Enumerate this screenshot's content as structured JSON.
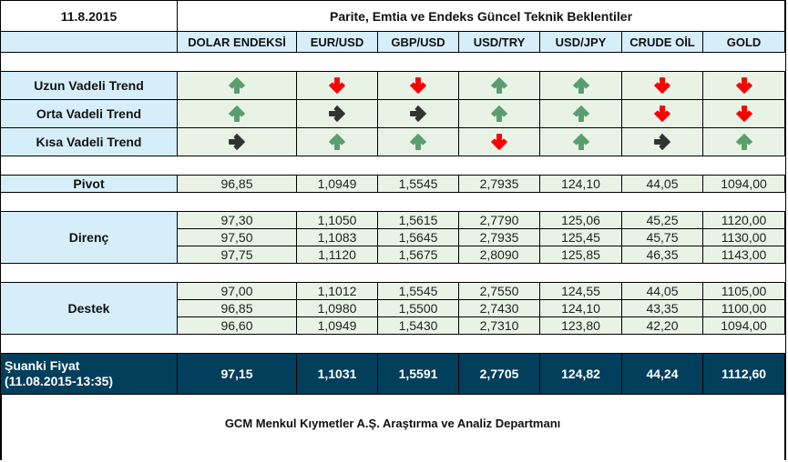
{
  "header": {
    "date": "11.8.2015",
    "title": "Parite, Emtia ve Endeks Güncel Teknik Beklentiler"
  },
  "columns": [
    "DOLAR ENDEKSİ",
    "EUR/USD",
    "GBP/USD",
    "USD/TRY",
    "USD/JPY",
    "CRUDE OİL",
    "GOLD"
  ],
  "colors": {
    "up": "#5a9e6f",
    "down": "#ff0000",
    "neutral": "#333333",
    "label_bg": "#d6eef9",
    "cell_bg": "#e8f3e6",
    "current_bg": "#023f5c"
  },
  "trends": [
    {
      "label": "Uzun Vadeli Trend",
      "values": [
        "up-arrow-icon",
        "down-arrow-icon",
        "down-arrow-icon",
        "up-arrow-icon",
        "up-arrow-icon",
        "down-arrow-icon",
        "down-arrow-icon"
      ]
    },
    {
      "label": "Orta Vadeli Trend",
      "values": [
        "up-arrow-icon",
        "right-arrow-icon",
        "right-arrow-icon",
        "up-arrow-icon",
        "up-arrow-icon",
        "down-arrow-icon",
        "down-arrow-icon"
      ]
    },
    {
      "label": "Kısa Vadeli Trend",
      "values": [
        "right-arrow-icon",
        "up-arrow-icon",
        "up-arrow-icon",
        "down-arrow-icon",
        "up-arrow-icon",
        "right-arrow-icon",
        "up-arrow-icon"
      ]
    }
  ],
  "pivot": {
    "label": "Pivot",
    "values": [
      "96,85",
      "1,0949",
      "1,5545",
      "2,7935",
      "124,10",
      "44,05",
      "1094,00"
    ]
  },
  "direnc": {
    "label": "Direnç",
    "rows": [
      [
        "97,30",
        "1,1050",
        "1,5615",
        "2,7790",
        "125,06",
        "45,25",
        "1120,00"
      ],
      [
        "97,50",
        "1,1083",
        "1,5645",
        "2,7935",
        "125,45",
        "45,75",
        "1130,00"
      ],
      [
        "97,75",
        "1,1120",
        "1,5675",
        "2,8090",
        "125,85",
        "46,35",
        "1143,00"
      ]
    ]
  },
  "destek": {
    "label": "Destek",
    "rows": [
      [
        "97,00",
        "1,1012",
        "1,5545",
        "2,7550",
        "124,55",
        "44,05",
        "1105,00"
      ],
      [
        "96,85",
        "1,0980",
        "1,5500",
        "2,7430",
        "124,10",
        "43,35",
        "1100,00"
      ],
      [
        "96,60",
        "1,0949",
        "1,5430",
        "2,7310",
        "123,80",
        "42,20",
        "1094,00"
      ]
    ]
  },
  "current": {
    "label": "Şuanki Fiyat",
    "timestamp": "(11.08.2015-13:35)",
    "values": [
      "97,15",
      "1,1031",
      "1,5591",
      "2,7705",
      "124,82",
      "44,24",
      "1112,60"
    ]
  },
  "footer": {
    "text": "GCM Menkul Kıymetler A.Ş. Araştırma ve Analiz Departmanı"
  }
}
